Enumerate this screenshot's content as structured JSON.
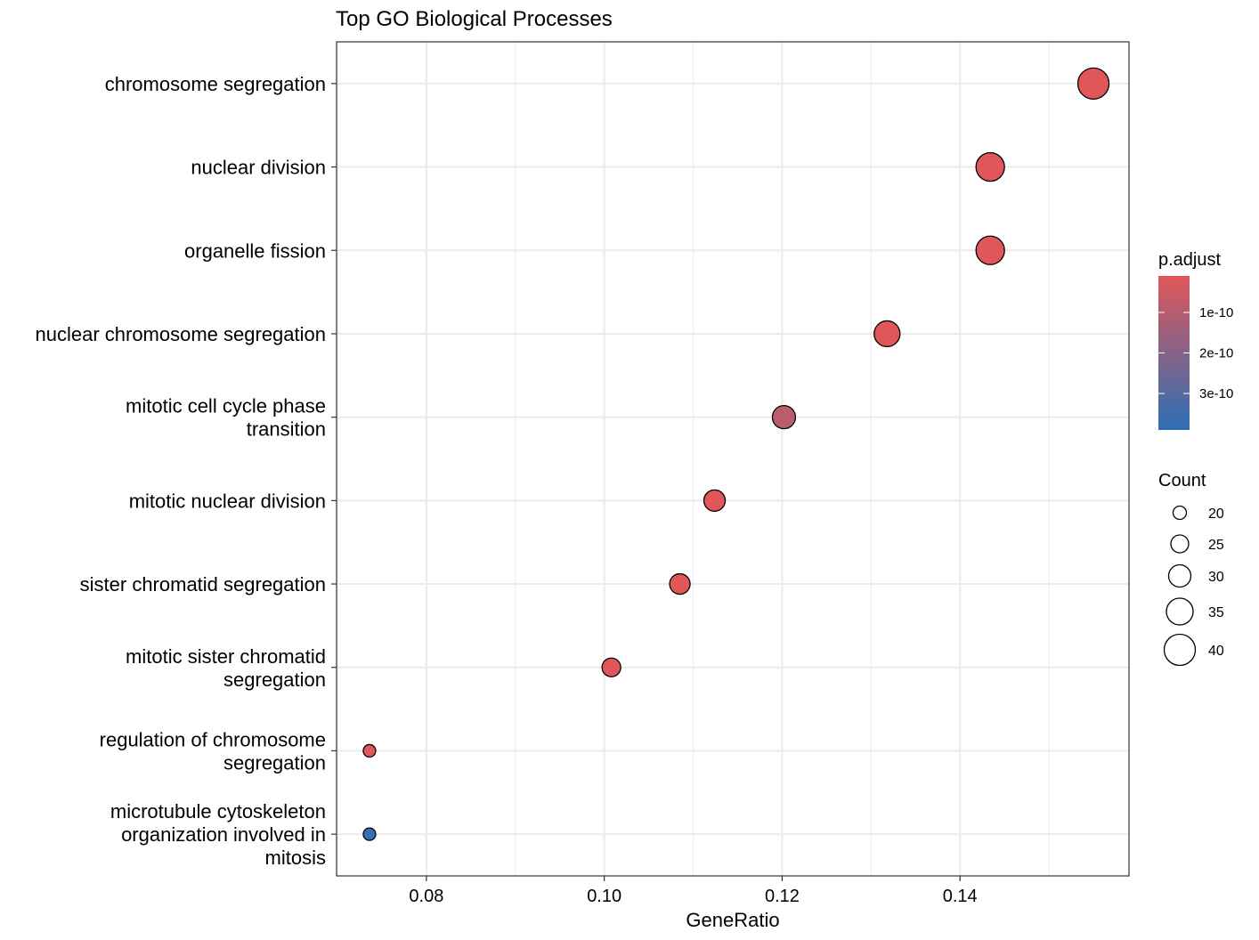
{
  "chart_data": {
    "type": "scatter",
    "title": "Top GO Biological Processes",
    "xlabel": "GeneRatio",
    "ylabel": "",
    "xlim": [
      0.0699,
      0.159
    ],
    "xticks": [
      0.08,
      0.1,
      0.12,
      0.14
    ],
    "xtick_labels": [
      "0.08",
      "0.10",
      "0.12",
      "0.14"
    ],
    "grid": true,
    "legend_position": "right",
    "categories": [
      {
        "label": [
          "chromosome segregation"
        ],
        "gene_ratio": 0.155,
        "count": 40,
        "p_adjust": 1e-11
      },
      {
        "label": [
          "nuclear division"
        ],
        "gene_ratio": 0.1434,
        "count": 37,
        "p_adjust": 1e-11
      },
      {
        "label": [
          "organelle fission"
        ],
        "gene_ratio": 0.1434,
        "count": 37,
        "p_adjust": 1e-11
      },
      {
        "label": [
          "nuclear chromosome segregation"
        ],
        "gene_ratio": 0.1318,
        "count": 34,
        "p_adjust": 1e-11
      },
      {
        "label": [
          "mitotic cell cycle phase",
          "transition"
        ],
        "gene_ratio": 0.1202,
        "count": 31,
        "p_adjust": 9e-11
      },
      {
        "label": [
          "mitotic nuclear division"
        ],
        "gene_ratio": 0.1124,
        "count": 29,
        "p_adjust": 1e-11
      },
      {
        "label": [
          "sister chromatid segregation"
        ],
        "gene_ratio": 0.1085,
        "count": 28,
        "p_adjust": 1e-11
      },
      {
        "label": [
          "mitotic sister chromatid",
          "segregation"
        ],
        "gene_ratio": 0.1008,
        "count": 26,
        "p_adjust": 1e-11
      },
      {
        "label": [
          "regulation of chromosome",
          "segregation"
        ],
        "gene_ratio": 0.0736,
        "count": 19,
        "p_adjust": 1e-11
      },
      {
        "label": [
          "microtubule cytoskeleton",
          "organization involved in",
          "mitosis"
        ],
        "gene_ratio": 0.0736,
        "count": 19,
        "p_adjust": 3.7e-10
      }
    ],
    "color_legend": {
      "title": "p.adjust",
      "low_color": "#E15759",
      "high_color": "#2C6FB5",
      "range": [
        1e-11,
        3.9e-10
      ],
      "ticks": [
        1e-10,
        2e-10,
        3e-10
      ],
      "tick_labels": [
        "1e-10",
        "2e-10",
        "3e-10"
      ]
    },
    "size_legend": {
      "title": "Count",
      "values": [
        20,
        25,
        30,
        35,
        40
      ],
      "labels": [
        "20",
        "25",
        "30",
        "35",
        "40"
      ]
    }
  }
}
